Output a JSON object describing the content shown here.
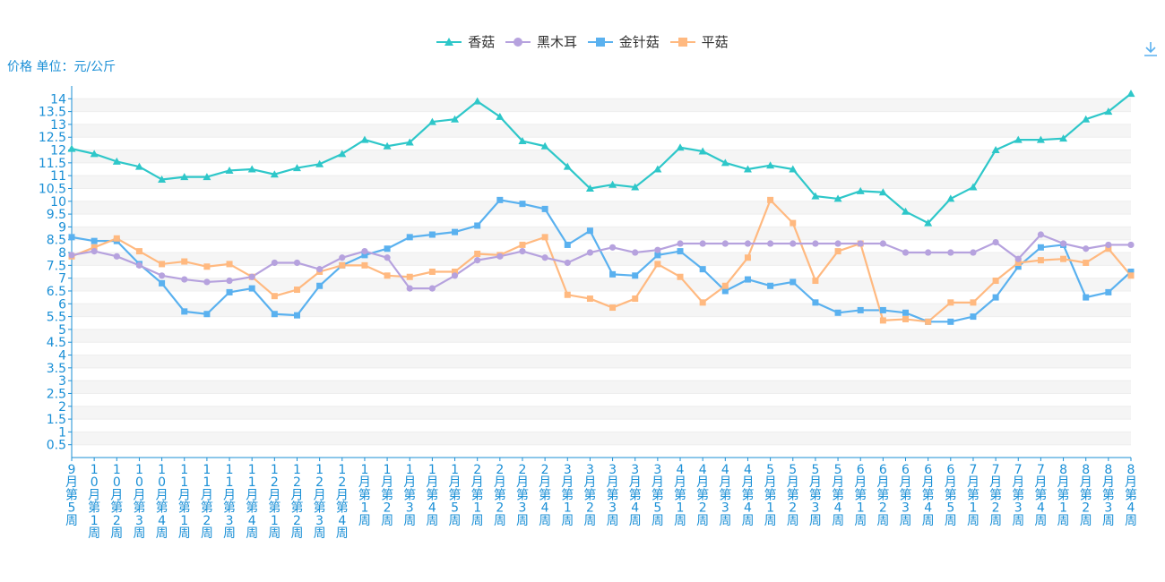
{
  "y_unit_label": "价格 单位：元/公斤",
  "download_icon": "download-icon",
  "chart_data": {
    "type": "line",
    "ylabel": "价格 单位：元/公斤",
    "ylim": [
      0,
      14.5
    ],
    "yticks": [
      0.5,
      1,
      1.5,
      2,
      2.5,
      3,
      3.5,
      4,
      4.5,
      5,
      5.5,
      6,
      6.5,
      7,
      7.5,
      8,
      8.5,
      9,
      9.5,
      10,
      10.5,
      11,
      11.5,
      12,
      12.5,
      13,
      13.5,
      14
    ],
    "grid": true,
    "legend_position": "top-center",
    "categories": [
      "9月第5周",
      "10月第1周",
      "10月第2周",
      "10月第3周",
      "10月第4周",
      "11月第1周",
      "11月第2周",
      "11月第3周",
      "11月第4周",
      "12月第1周",
      "12月第2周",
      "12月第3周",
      "12月第4周",
      "1月第1周",
      "1月第2周",
      "1月第3周",
      "1月第4周",
      "1月第5周",
      "2月第1周",
      "2月第2周",
      "2月第3周",
      "2月第4周",
      "3月第1周",
      "3月第2周",
      "3月第3周",
      "3月第4周",
      "3月第5周",
      "4月第1周",
      "4月第2周",
      "4月第3周",
      "4月第4周",
      "5月第1周",
      "5月第2周",
      "5月第3周",
      "5月第4周",
      "6月第1周",
      "6月第2周",
      "6月第3周",
      "6月第4周",
      "6月第5周",
      "7月第1周",
      "7月第2周",
      "7月第3周",
      "7月第4周",
      "8月第1周",
      "8月第2周",
      "8月第3周",
      "8月第4周"
    ],
    "series": [
      {
        "name": "香菇",
        "color": "#2ec7c9",
        "marker": "triangle",
        "values": [
          12.05,
          11.85,
          11.55,
          11.35,
          10.85,
          10.95,
          10.95,
          11.2,
          11.25,
          11.05,
          11.3,
          11.45,
          11.85,
          12.4,
          12.15,
          12.3,
          13.1,
          13.2,
          13.9,
          13.3,
          12.35,
          12.15,
          11.35,
          10.5,
          10.65,
          10.55,
          11.25,
          12.1,
          11.95,
          11.5,
          11.25,
          11.4,
          11.25,
          10.2,
          10.1,
          10.4,
          10.35,
          9.6,
          9.15,
          10.1,
          10.55,
          12.0,
          12.4,
          12.4,
          12.45,
          13.2,
          13.5,
          14.2
        ]
      },
      {
        "name": "黑木耳",
        "color": "#b6a2de",
        "marker": "circle",
        "values": [
          7.9,
          8.05,
          7.85,
          7.5,
          7.1,
          6.95,
          6.85,
          6.9,
          7.05,
          7.6,
          7.6,
          7.35,
          7.8,
          8.05,
          7.8,
          6.6,
          6.6,
          7.1,
          7.7,
          7.85,
          8.05,
          7.8,
          7.6,
          8.0,
          8.2,
          8.0,
          8.1,
          8.35,
          8.35,
          8.35,
          8.35,
          8.35,
          8.35,
          8.35,
          8.35,
          8.35,
          8.35,
          8.0,
          8.0,
          8.0,
          8.0,
          8.4,
          7.75,
          8.7,
          8.35,
          8.15,
          8.3,
          8.3
        ]
      },
      {
        "name": "金针菇",
        "color": "#5ab1ef",
        "marker": "square",
        "values": [
          8.6,
          8.45,
          8.45,
          7.55,
          6.8,
          5.7,
          5.6,
          6.45,
          6.6,
          5.6,
          5.55,
          6.7,
          7.5,
          7.9,
          8.15,
          8.6,
          8.7,
          8.8,
          9.05,
          10.05,
          9.9,
          9.7,
          8.3,
          8.85,
          7.15,
          7.1,
          7.9,
          8.05,
          7.35,
          6.5,
          6.95,
          6.7,
          6.85,
          6.05,
          5.65,
          5.75,
          5.75,
          5.65,
          5.3,
          5.3,
          5.5,
          6.25,
          7.45,
          8.2,
          8.3,
          6.25,
          6.45,
          7.25
        ]
      },
      {
        "name": "平菇",
        "color": "#ffb980",
        "marker": "square",
        "values": [
          7.85,
          8.2,
          8.55,
          8.05,
          7.55,
          7.65,
          7.45,
          7.55,
          7.05,
          6.3,
          6.55,
          7.25,
          7.5,
          7.5,
          7.1,
          7.05,
          7.25,
          7.25,
          7.95,
          7.9,
          8.3,
          8.6,
          6.35,
          6.2,
          5.85,
          6.2,
          7.55,
          7.05,
          6.05,
          6.7,
          7.8,
          10.05,
          9.15,
          6.9,
          8.05,
          8.35,
          5.35,
          5.4,
          5.3,
          6.05,
          6.05,
          6.9,
          7.6,
          7.7,
          7.75,
          7.6,
          8.15,
          7.1
        ]
      }
    ]
  }
}
